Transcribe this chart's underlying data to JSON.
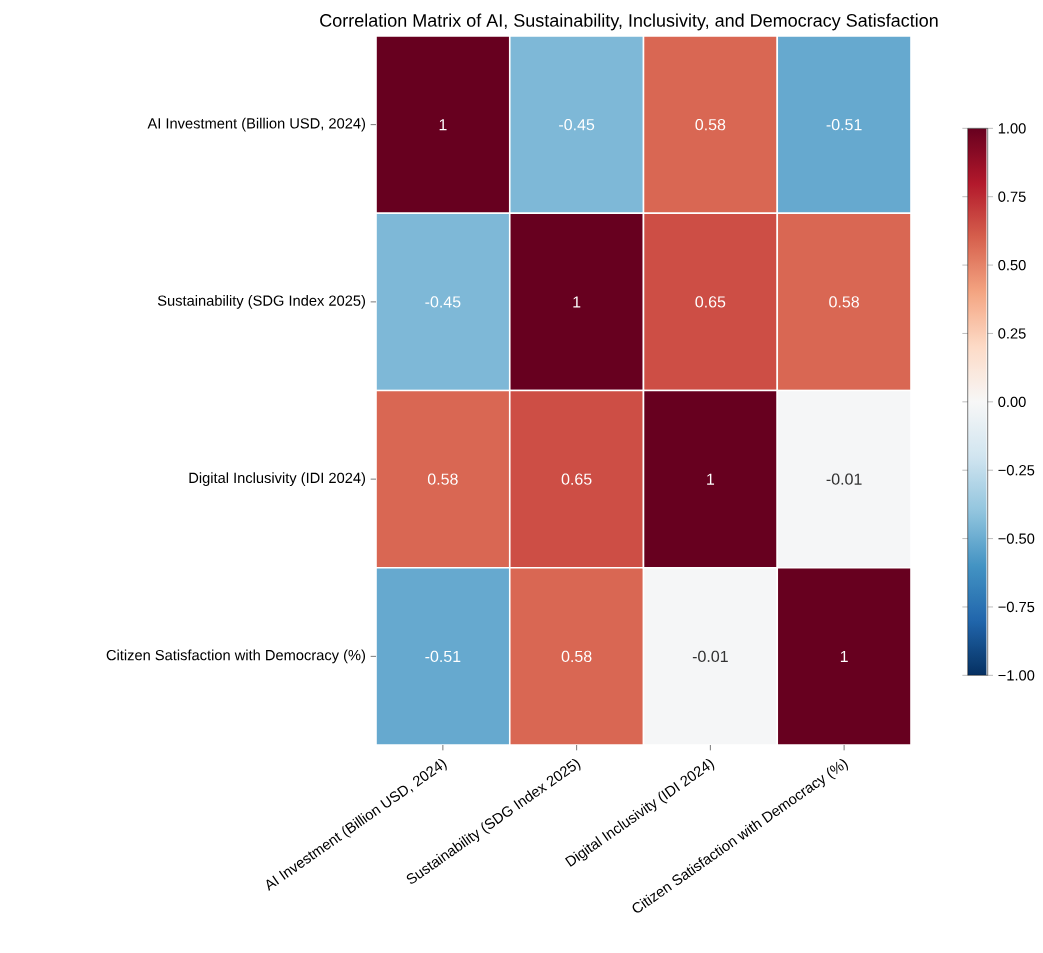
{
  "chart_data": {
    "type": "heatmap",
    "title": "Correlation Matrix of AI, Sustainability, Inclusivity, and Democracy Satisfaction",
    "categories": [
      "AI Investment (Billion USD, 2024)",
      "Sustainability (SDG Index 2025)",
      "Digital Inclusivity (IDI 2024)",
      "Citizen Satisfaction with Democracy (%)"
    ],
    "y_categories": [
      "AI Investment (Billion USD, 2024)",
      "Sustainability (SDG Index 2025)",
      "Digital Inclusivity (IDI 2024)",
      "Citizen Satisfaction with Democracy (%)"
    ],
    "cells": [
      [
        1,
        -0.45,
        0.58,
        -0.51
      ],
      [
        -0.45,
        1,
        0.65,
        0.58
      ],
      [
        0.58,
        0.65,
        1,
        -0.01
      ],
      [
        -0.51,
        0.58,
        -0.01,
        1
      ]
    ],
    "clim": [
      -1,
      1
    ],
    "cticks": [
      {
        "value": -1,
        "label": "−1.00"
      },
      {
        "value": -0.75,
        "label": "−0.75"
      },
      {
        "value": -0.5,
        "label": "−0.50"
      },
      {
        "value": -0.25,
        "label": "−0.25"
      },
      {
        "value": 0,
        "label": "0.00"
      },
      {
        "value": 0.25,
        "label": "0.25"
      },
      {
        "value": 0.5,
        "label": "0.50"
      },
      {
        "value": 0.75,
        "label": "0.75"
      },
      {
        "value": 1,
        "label": "1.00"
      }
    ],
    "data_labels": true
  }
}
